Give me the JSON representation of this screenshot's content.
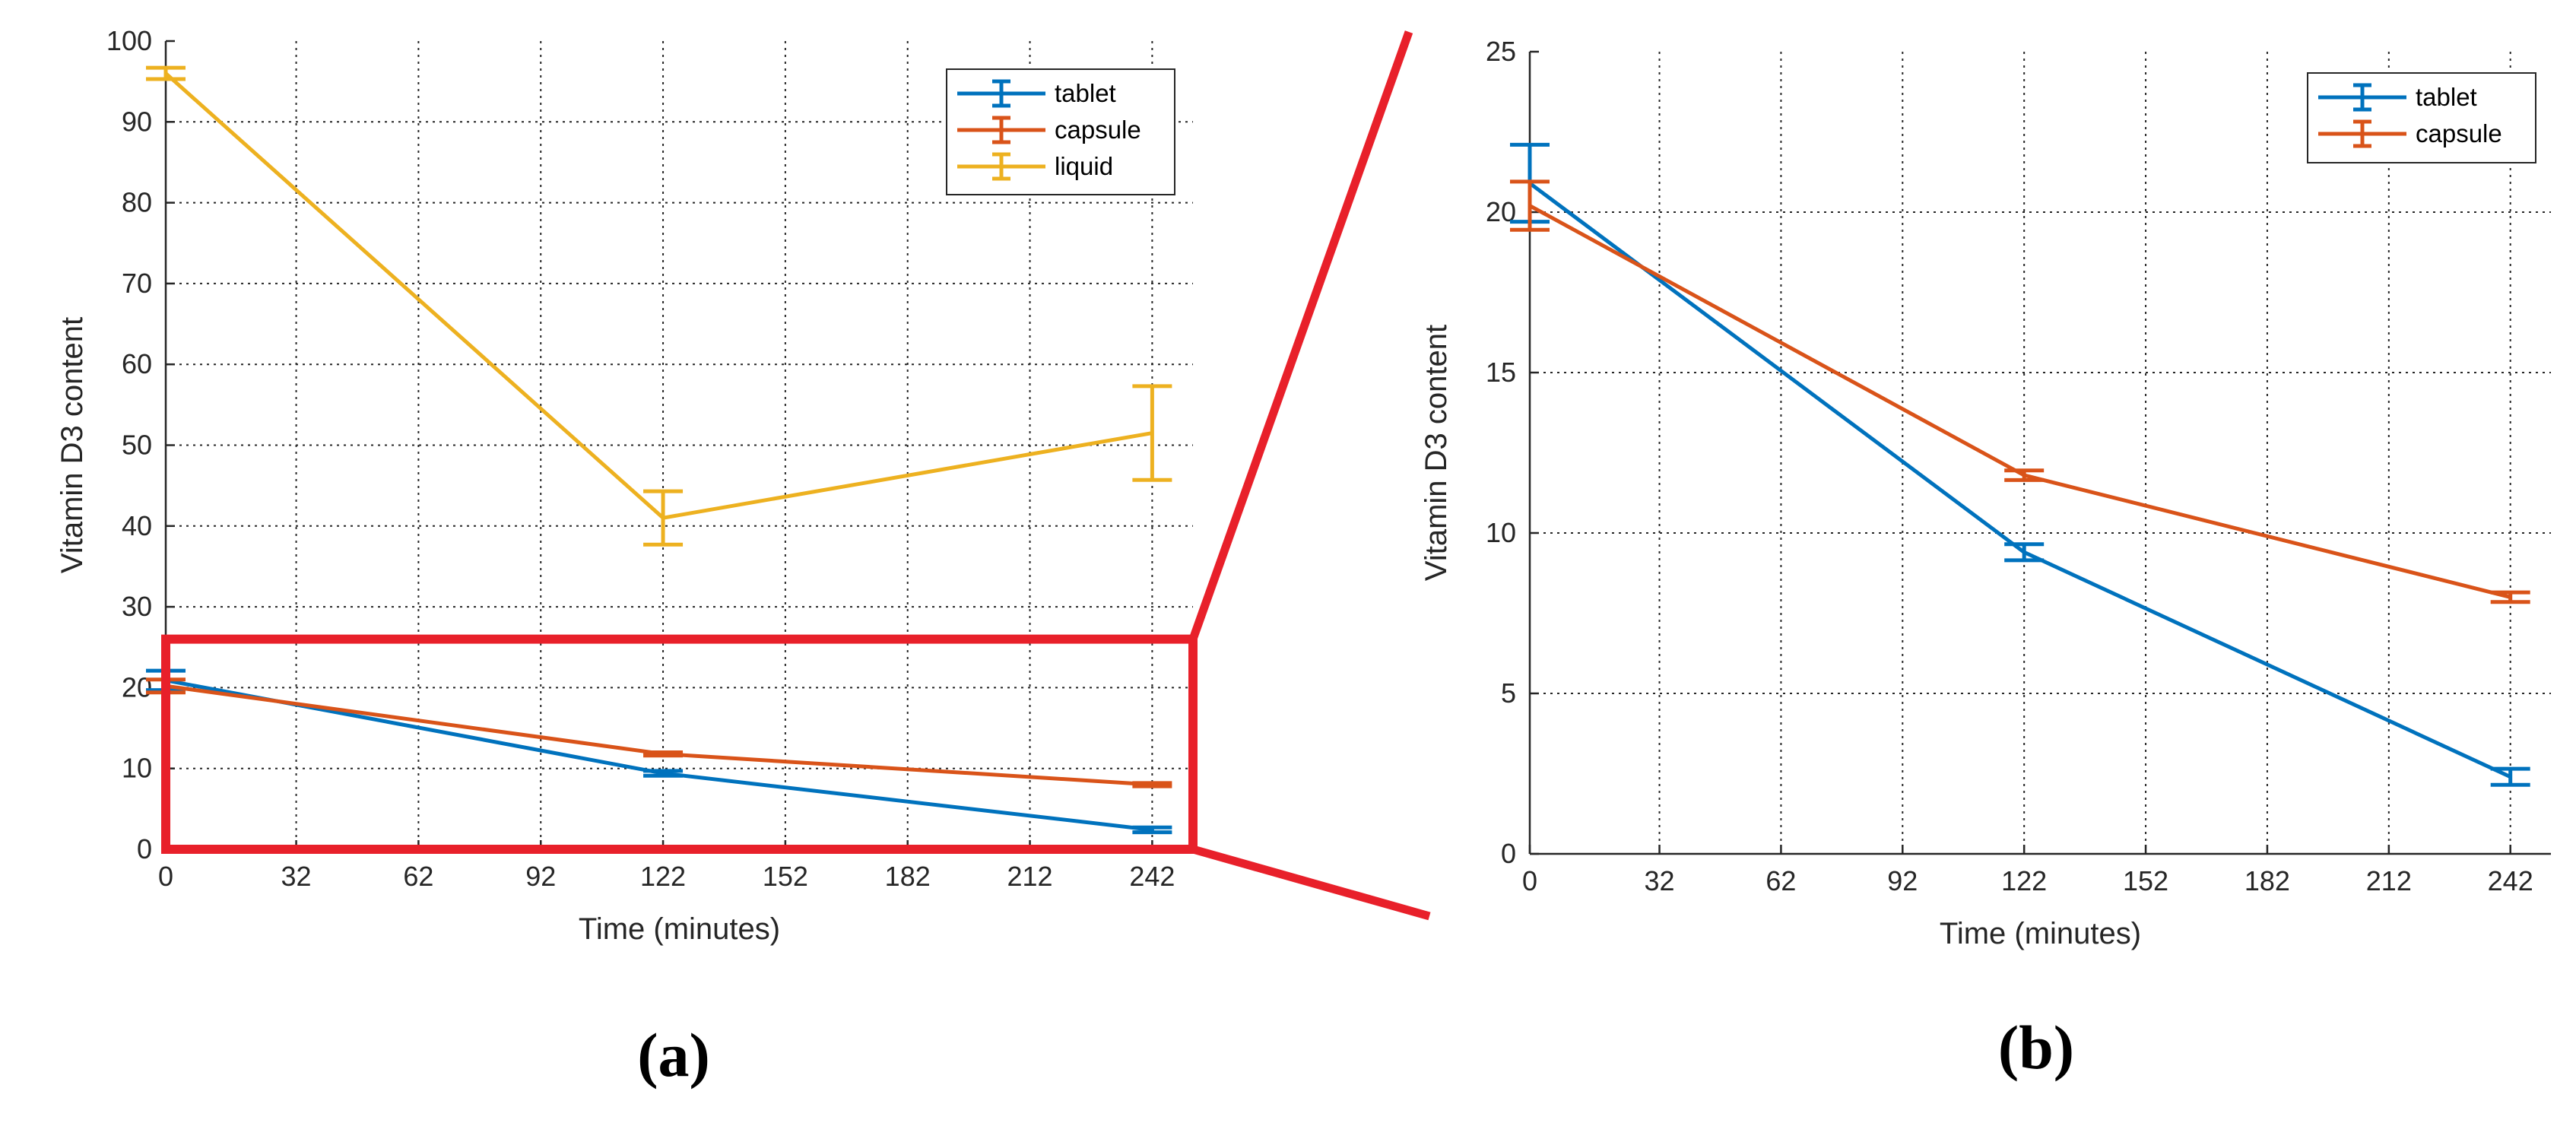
{
  "colors": {
    "tablet": "#0072BD",
    "capsule": "#D95319",
    "liquid": "#EDB120",
    "zoom_box": "#E8202A"
  },
  "chart_data": [
    {
      "id": "a",
      "type": "line",
      "panel_label": "(a)",
      "xlabel": "Time (minutes)",
      "ylabel": "Vitamin D3 content",
      "xlim": [
        0,
        252
      ],
      "ylim": [
        0,
        100
      ],
      "xticks": [
        0,
        32,
        62,
        92,
        122,
        152,
        182,
        212,
        242
      ],
      "yticks": [
        0,
        10,
        20,
        30,
        40,
        50,
        60,
        70,
        80,
        90,
        100
      ],
      "grid": true,
      "legend": "top-right",
      "zoom_box": {
        "x": [
          0,
          252
        ],
        "y": [
          0,
          26
        ]
      },
      "series": [
        {
          "name": "tablet",
          "color": "#0072BD",
          "x": [
            0,
            122,
            242
          ],
          "y": [
            20.9,
            9.4,
            2.4
          ],
          "err": [
            1.2,
            0.3,
            0.3
          ]
        },
        {
          "name": "capsule",
          "color": "#D95319",
          "x": [
            0,
            122,
            242
          ],
          "y": [
            20.2,
            11.8,
            8.0
          ],
          "err": [
            0.8,
            0.2,
            0.2
          ]
        },
        {
          "name": "liquid",
          "color": "#EDB120",
          "x": [
            0,
            122,
            242
          ],
          "y": [
            96.0,
            41.0,
            51.5
          ],
          "err": [
            0.7,
            3.3,
            5.8
          ]
        }
      ]
    },
    {
      "id": "b",
      "type": "line",
      "panel_label": "(b)",
      "xlabel": "Time (minutes)",
      "ylabel": "Vitamin D3 content",
      "xlim": [
        0,
        252
      ],
      "ylim": [
        0,
        25
      ],
      "xticks": [
        0,
        32,
        62,
        92,
        122,
        152,
        182,
        212,
        242
      ],
      "yticks": [
        0,
        5,
        10,
        15,
        20,
        25
      ],
      "grid": true,
      "legend": "top-right",
      "series": [
        {
          "name": "tablet",
          "color": "#0072BD",
          "x": [
            0,
            122,
            242
          ],
          "y": [
            20.9,
            9.4,
            2.4
          ],
          "err": [
            1.2,
            0.25,
            0.25
          ]
        },
        {
          "name": "capsule",
          "color": "#D95319",
          "x": [
            0,
            122,
            242
          ],
          "y": [
            20.2,
            11.8,
            8.0
          ],
          "err": [
            0.75,
            0.15,
            0.15
          ]
        }
      ]
    }
  ]
}
